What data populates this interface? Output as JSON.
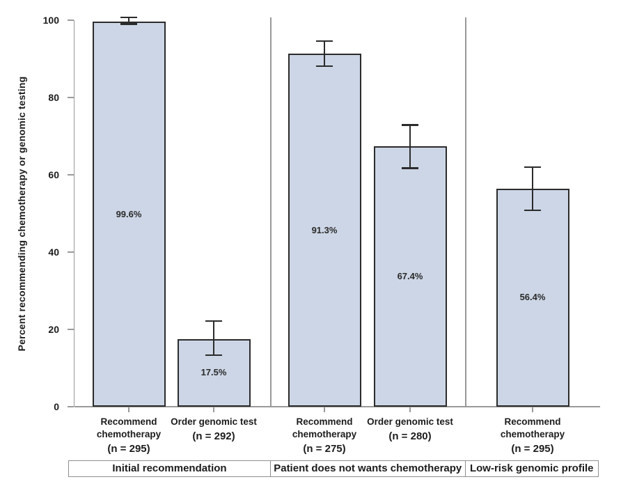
{
  "chart_data": {
    "type": "bar",
    "title": "",
    "xlabel": "",
    "ylabel": "Percent recommending chemotherapy or genomic testing",
    "ylim": [
      0,
      100
    ],
    "yticks": [
      0,
      20,
      40,
      60,
      80,
      100
    ],
    "grid": false,
    "legend": false,
    "error_bars": true,
    "colors": {
      "bar_fill": "#ccd6e6",
      "bar_border": "#2b2b2b",
      "error_bar": "#2b2b2b",
      "axis": "#9a9a9a",
      "divider": "#999999",
      "box_border": "#8f8f8f",
      "text": "#1c1c1c"
    },
    "groups": [
      {
        "label": "Initial recommendation",
        "bars": [
          {
            "category": "Recommend chemotherapy",
            "n_label": "(n = 295)",
            "value": 99.6,
            "value_label": "99.6%",
            "ci_low": 99.0,
            "ci_high": 100.7
          },
          {
            "category": "Order genomic test",
            "n_label": "(n = 292)",
            "value": 17.5,
            "value_label": "17.5%",
            "ci_low": 13.3,
            "ci_high": 22.2
          }
        ]
      },
      {
        "label": "Patient does not wants chemotherapy",
        "bars": [
          {
            "category": "Recommend chemotherapy",
            "n_label": "(n = 275)",
            "value": 91.3,
            "value_label": "91.3%",
            "ci_low": 88.1,
            "ci_high": 94.6
          },
          {
            "category": "Order genomic test",
            "n_label": "(n = 280)",
            "value": 67.4,
            "value_label": "67.4%",
            "ci_low": 61.7,
            "ci_high": 72.9
          }
        ]
      },
      {
        "label": "Low-risk genomic profile",
        "bars": [
          {
            "category": "Recommend chemotherapy",
            "n_label": "(n = 295)",
            "value": 56.4,
            "value_label": "56.4%",
            "ci_low": 50.8,
            "ci_high": 62.0
          }
        ]
      }
    ]
  }
}
